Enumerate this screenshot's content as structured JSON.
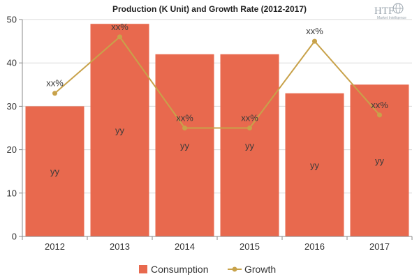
{
  "chart_data": {
    "type": "bar",
    "title": "Production (K Unit) and Growth Rate (2012-2017)",
    "categories": [
      "2012",
      "2013",
      "2014",
      "2015",
      "2016",
      "2017"
    ],
    "series": [
      {
        "name": "Consumption",
        "type": "bar",
        "values": [
          30,
          49,
          42,
          42,
          33,
          35
        ],
        "labels": [
          "yy",
          "yy",
          "yy",
          "yy",
          "yy",
          "yy"
        ],
        "color": "#e8694e"
      },
      {
        "name": "Growth",
        "type": "line",
        "values": [
          33,
          46,
          25,
          25,
          45,
          28
        ],
        "labels": [
          "xx%",
          "xx%",
          "xx%",
          "xx%",
          "xx%",
          "xx%"
        ],
        "color": "#c8a24a"
      }
    ],
    "ylim": [
      0,
      50
    ],
    "yticks": [
      0,
      10,
      20,
      30,
      40,
      50
    ],
    "grid": true,
    "legend": "bottom-center"
  },
  "logo": {
    "name": "HTF",
    "subtitle": "Market Intelligence",
    "icon": "globe-icon",
    "color": "#9aa4ad"
  }
}
